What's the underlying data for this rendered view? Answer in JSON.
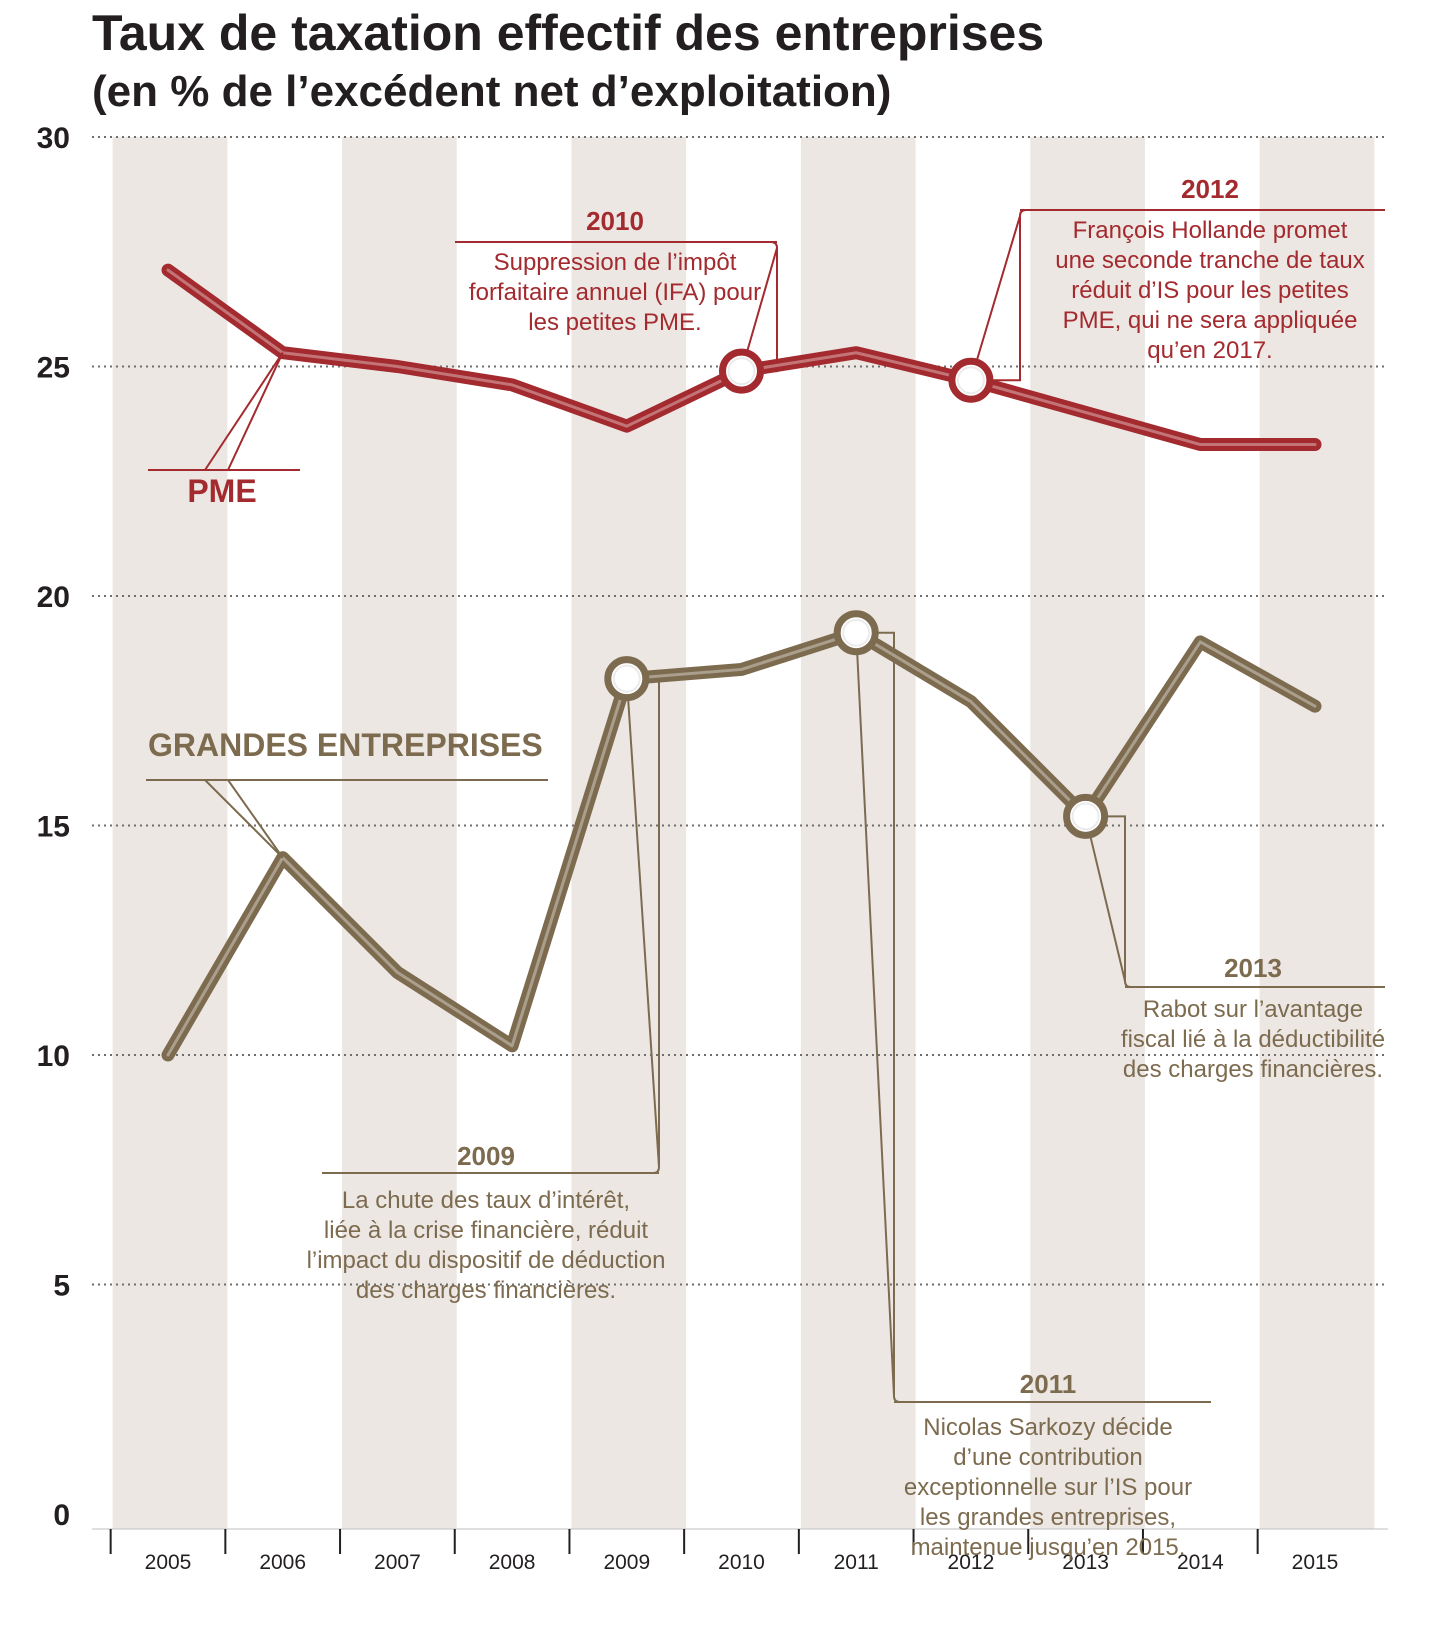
{
  "title": "Taux de taxation effectif des entreprises",
  "subtitle": "(en % de l’excédent net d’exploitation)",
  "colors": {
    "pme": "#a32a2e",
    "grandes": "#7d6b4f",
    "band": "#ece7e3",
    "grid": "#6e6e6e",
    "text": "#231f20"
  },
  "chart_data": {
    "type": "line",
    "title": "Taux de taxation effectif des entreprises",
    "subtitle": "(en % de l’excédent net d’exploitation)",
    "x": [
      "2005",
      "2006",
      "2007",
      "2008",
      "2009",
      "2010",
      "2011",
      "2012",
      "2013",
      "2014",
      "2015"
    ],
    "y_ticks": [
      "0",
      "5",
      "10",
      "15",
      "20",
      "25",
      "30"
    ],
    "ylim": [
      0,
      30
    ],
    "grid": true,
    "series": [
      {
        "name": "PME",
        "values": [
          27.1,
          25.3,
          25.0,
          24.6,
          23.7,
          24.9,
          25.3,
          24.7,
          24.0,
          23.3,
          23.3
        ]
      },
      {
        "name": "GRANDES ENTREPRISES",
        "values": [
          10.0,
          14.3,
          11.8,
          10.2,
          18.2,
          18.4,
          19.2,
          17.7,
          15.2,
          19.0,
          17.6
        ]
      }
    ],
    "annotations": [
      {
        "series": 0,
        "x": "2010",
        "year": "2010",
        "lines": [
          "Suppression de l’impôt",
          "forfaitaire annuel (IFA) pour",
          "les petites PME."
        ]
      },
      {
        "series": 0,
        "x": "2012",
        "year": "2012",
        "lines": [
          "François Hollande promet",
          "une seconde tranche de taux",
          "réduit d’IS pour les petites",
          "PME, qui ne sera appliquée",
          "qu’en 2017."
        ]
      },
      {
        "series": 1,
        "x": "2009",
        "year": "2009",
        "lines": [
          "La chute des taux d’intérêt,",
          "liée à la crise financière, réduit",
          "l’impact du dispositif de déduction",
          "des charges financières."
        ]
      },
      {
        "series": 1,
        "x": "2011",
        "year": "2011",
        "lines": [
          "Nicolas Sarkozy décide",
          "d’une contribution",
          "exceptionnelle sur l’IS pour",
          "les grandes entreprises,",
          "maintenue jusqu’en 2015."
        ]
      },
      {
        "series": 1,
        "x": "2013",
        "year": "2013",
        "lines": [
          "Rabot sur l’avantage",
          "fiscal lié à la déductibilité",
          "des charges financières."
        ]
      }
    ]
  }
}
